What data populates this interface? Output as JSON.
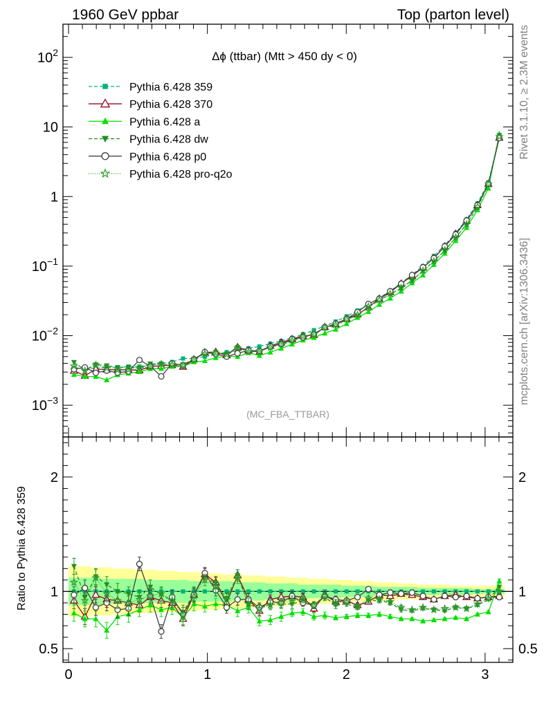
{
  "header": {
    "left": "1960 GeV ppbar",
    "right": "Top (parton level)"
  },
  "side": {
    "rivet": "Rivet 3.1.10, ≥ 2.3M events",
    "mcplots": "mcplots.cern.ch [arXiv:1306.3436]"
  },
  "colors": {
    "p359": "#00b37a",
    "p370": "#8b0a1f",
    "pa": "#00e000",
    "pdw": "#1f8f1f",
    "pp0": "#404040",
    "pq2o": "#2e9a2e",
    "band_yellow": "#ffff99",
    "band_green": "#99ff99"
  },
  "chart_data": [
    {
      "type": "line",
      "title": "Δϕ (ttbar) (Mtt > 450 dy < 0)",
      "watermark": "(MC_FBA_TTBAR)",
      "yscale": "log",
      "ylim": [
        0.00035,
        300
      ],
      "xlim": [
        -0.04,
        3.2
      ],
      "yticks": [
        {
          "v": 0.001,
          "base": "10",
          "exp": "−3"
        },
        {
          "v": 0.01,
          "base": "10",
          "exp": "−2"
        },
        {
          "v": 0.1,
          "base": "10",
          "exp": "−1"
        },
        {
          "v": 1,
          "base": "1",
          "exp": ""
        },
        {
          "v": 10,
          "base": "10",
          "exp": ""
        },
        {
          "v": 100,
          "base": "10",
          "exp": "2"
        }
      ],
      "legend": [
        {
          "key": "p359",
          "name": "Pythia 6.428 359"
        },
        {
          "key": "p370",
          "name": "Pythia 6.428 370"
        },
        {
          "key": "pa",
          "name": "Pythia 6.428 a"
        },
        {
          "key": "pdw",
          "name": "Pythia 6.428 dw"
        },
        {
          "key": "pp0",
          "name": "Pythia 6.428 p0"
        },
        {
          "key": "pq2o",
          "name": "Pythia 6.428 pro-q2o"
        }
      ],
      "x": [
        0.0393,
        0.1178,
        0.1963,
        0.2749,
        0.3534,
        0.432,
        0.5105,
        0.589,
        0.6676,
        0.7461,
        0.8247,
        0.9032,
        0.9817,
        1.0603,
        1.1388,
        1.2174,
        1.2959,
        1.3744,
        1.453,
        1.5315,
        1.6101,
        1.6886,
        1.7671,
        1.8457,
        1.9242,
        2.0028,
        2.0813,
        2.1598,
        2.2384,
        2.3169,
        2.3955,
        2.474,
        2.5525,
        2.6311,
        2.7096,
        2.7882,
        2.8667,
        2.9452,
        3.0238,
        3.1023
      ],
      "reference": [
        0.0034,
        0.0034,
        0.0034,
        0.0035,
        0.0035,
        0.0036,
        0.0036,
        0.0038,
        0.004,
        0.0042,
        0.0047,
        0.0047,
        0.005,
        0.0054,
        0.0058,
        0.006,
        0.0066,
        0.007,
        0.0077,
        0.0084,
        0.0093,
        0.0105,
        0.012,
        0.0137,
        0.016,
        0.019,
        0.023,
        0.028,
        0.035,
        0.044,
        0.057,
        0.075,
        0.1,
        0.14,
        0.2,
        0.3,
        0.47,
        0.8,
        1.6,
        7.3
      ],
      "ratio_ylim": [
        0.38,
        2.35
      ],
      "ratio_yticks": [
        0.5,
        1,
        2
      ],
      "ratio_ylabel": "Ratio to Pythia 6.428 359",
      "xticks": [
        0,
        1,
        2,
        3
      ],
      "band_outer": [
        0.22,
        0.22,
        0.21,
        0.21,
        0.2,
        0.2,
        0.19,
        0.19,
        0.18,
        0.18,
        0.17,
        0.17,
        0.16,
        0.16,
        0.15,
        0.15,
        0.14,
        0.14,
        0.13,
        0.13,
        0.12,
        0.12,
        0.11,
        0.11,
        0.1,
        0.1,
        0.09,
        0.09,
        0.08,
        0.08,
        0.07,
        0.07,
        0.06,
        0.06,
        0.06,
        0.05,
        0.05,
        0.05,
        0.05,
        0.05
      ],
      "band_inner": [
        0.12,
        0.12,
        0.12,
        0.11,
        0.11,
        0.11,
        0.11,
        0.1,
        0.1,
        0.1,
        0.1,
        0.09,
        0.09,
        0.09,
        0.09,
        0.08,
        0.08,
        0.08,
        0.07,
        0.07,
        0.07,
        0.06,
        0.06,
        0.06,
        0.06,
        0.05,
        0.05,
        0.05,
        0.04,
        0.04,
        0.04,
        0.04,
        0.03,
        0.03,
        0.03,
        0.03,
        0.03,
        0.02,
        0.02,
        0.02
      ],
      "series": [
        {
          "key": "p359",
          "marker": "square",
          "dash": "5,3",
          "ratio": [
            1.0,
            1.0,
            1.0,
            1.0,
            1.0,
            1.0,
            1.0,
            1.0,
            1.0,
            1.0,
            1.0,
            1.0,
            1.0,
            1.0,
            1.0,
            1.0,
            1.0,
            1.0,
            1.0,
            1.0,
            1.0,
            1.0,
            1.0,
            1.0,
            1.0,
            1.0,
            1.0,
            1.0,
            1.0,
            1.0,
            1.0,
            1.0,
            1.0,
            1.0,
            1.0,
            1.0,
            1.0,
            1.0,
            1.0,
            1.0
          ],
          "err": [
            0.1,
            0.1,
            0.1,
            0.1,
            0.1,
            0.09,
            0.09,
            0.09,
            0.09,
            0.08,
            0.08,
            0.08,
            0.07,
            0.07,
            0.06,
            0.06,
            0.06,
            0.05,
            0.05,
            0.05,
            0.04,
            0.04,
            0.04,
            0.03,
            0.03,
            0.03,
            0.02,
            0.02,
            0.02,
            0.02,
            0.02,
            0.02,
            0.02,
            0.02,
            0.01,
            0.01,
            0.01,
            0.01,
            0.01,
            0.01
          ]
        },
        {
          "key": "p370",
          "marker": "triangle-open",
          "dash": "",
          "ratio": [
            0.92,
            0.78,
            0.97,
            0.93,
            0.92,
            0.9,
            0.88,
            0.95,
            0.92,
            0.9,
            0.76,
            0.97,
            1.15,
            1.08,
            0.9,
            1.14,
            0.93,
            0.83,
            0.93,
            0.95,
            0.96,
            0.95,
            0.85,
            0.97,
            0.91,
            0.92,
            0.88,
            0.91,
            0.97,
            0.96,
            0.98,
            0.97,
            0.95,
            0.93,
            0.96,
            0.97,
            0.95,
            0.94,
            0.95,
            0.96
          ],
          "err": [
            0.07,
            0.07,
            0.07,
            0.07,
            0.07,
            0.06,
            0.06,
            0.06,
            0.06,
            0.06,
            0.06,
            0.06,
            0.05,
            0.05,
            0.05,
            0.05,
            0.05,
            0.04,
            0.04,
            0.04,
            0.04,
            0.03,
            0.03,
            0.03,
            0.03,
            0.02,
            0.02,
            0.02,
            0.02,
            0.02,
            0.02,
            0.01,
            0.01,
            0.01,
            0.01,
            0.01,
            0.01,
            0.01,
            0.01,
            0.01
          ]
        },
        {
          "key": "pa",
          "marker": "triangle-up",
          "dash": "",
          "ratio": [
            0.81,
            0.76,
            0.76,
            0.66,
            0.78,
            0.8,
            0.84,
            0.88,
            0.84,
            0.86,
            0.77,
            0.89,
            0.87,
            0.89,
            0.88,
            0.83,
            0.86,
            0.74,
            0.75,
            0.78,
            0.81,
            0.82,
            0.78,
            0.79,
            0.77,
            0.78,
            0.79,
            0.79,
            0.8,
            0.78,
            0.76,
            0.76,
            0.74,
            0.75,
            0.76,
            0.77,
            0.76,
            0.8,
            0.82,
            1.09
          ],
          "err": [
            0.07,
            0.07,
            0.07,
            0.07,
            0.07,
            0.07,
            0.06,
            0.06,
            0.06,
            0.06,
            0.06,
            0.06,
            0.05,
            0.05,
            0.05,
            0.05,
            0.05,
            0.04,
            0.04,
            0.04,
            0.03,
            0.03,
            0.03,
            0.03,
            0.02,
            0.02,
            0.02,
            0.02,
            0.02,
            0.02,
            0.01,
            0.01,
            0.01,
            0.01,
            0.01,
            0.01,
            0.01,
            0.01,
            0.01,
            0.02
          ]
        },
        {
          "key": "pdw",
          "marker": "triangle-down",
          "dash": "5,3",
          "ratio": [
            1.22,
            0.95,
            1.13,
            1.06,
            1.0,
            0.98,
            0.95,
            1.04,
            0.97,
            0.92,
            0.82,
            0.98,
            1.13,
            1.07,
            0.94,
            1.14,
            0.89,
            0.85,
            0.89,
            0.89,
            0.89,
            0.92,
            0.88,
            0.95,
            0.88,
            0.89,
            0.86,
            0.92,
            0.92,
            0.9,
            0.84,
            0.83,
            0.85,
            0.84,
            0.83,
            0.86,
            0.85,
            0.88,
            0.93,
            1.04
          ],
          "err": [
            0.07,
            0.07,
            0.07,
            0.07,
            0.07,
            0.06,
            0.06,
            0.06,
            0.06,
            0.06,
            0.06,
            0.06,
            0.05,
            0.05,
            0.05,
            0.05,
            0.05,
            0.04,
            0.04,
            0.04,
            0.04,
            0.03,
            0.03,
            0.03,
            0.03,
            0.02,
            0.02,
            0.02,
            0.02,
            0.02,
            0.02,
            0.01,
            0.01,
            0.01,
            0.01,
            0.01,
            0.01,
            0.01,
            0.01,
            0.01
          ]
        },
        {
          "key": "pp0",
          "marker": "circle-open",
          "dash": "",
          "ratio": [
            0.97,
            1.03,
            0.86,
            0.9,
            0.84,
            0.85,
            1.24,
            0.96,
            0.65,
            0.95,
            0.8,
            0.97,
            1.16,
            1.01,
            0.86,
            0.93,
            0.93,
            0.86,
            0.91,
            0.9,
            0.96,
            0.9,
            0.88,
            0.96,
            0.93,
            0.92,
            0.95,
            1.02,
            0.97,
            0.99,
            0.98,
            0.99,
            0.96,
            0.93,
            0.96,
            0.95,
            0.96,
            0.94,
            0.95,
            0.95
          ],
          "err": [
            0.07,
            0.07,
            0.07,
            0.07,
            0.07,
            0.06,
            0.06,
            0.06,
            0.06,
            0.06,
            0.06,
            0.06,
            0.05,
            0.05,
            0.05,
            0.05,
            0.05,
            0.04,
            0.04,
            0.04,
            0.04,
            0.03,
            0.03,
            0.03,
            0.03,
            0.02,
            0.02,
            0.02,
            0.02,
            0.02,
            0.02,
            0.01,
            0.01,
            0.01,
            0.01,
            0.01,
            0.01,
            0.01,
            0.01,
            0.01
          ]
        },
        {
          "key": "pq2o",
          "marker": "star",
          "dash": "1,2",
          "ratio": [
            1.08,
            0.92,
            1.12,
            0.98,
            0.92,
            0.9,
            0.93,
            0.96,
            0.98,
            0.92,
            0.8,
            0.96,
            1.1,
            1.04,
            0.93,
            1.12,
            0.89,
            0.85,
            0.88,
            0.9,
            0.92,
            0.93,
            0.88,
            0.96,
            0.9,
            0.91,
            0.87,
            0.94,
            0.93,
            0.91,
            0.86,
            0.84,
            0.86,
            0.84,
            0.85,
            0.86,
            0.85,
            0.89,
            0.94,
            1.0
          ],
          "err": [
            0.07,
            0.07,
            0.07,
            0.07,
            0.07,
            0.06,
            0.06,
            0.06,
            0.06,
            0.06,
            0.06,
            0.06,
            0.05,
            0.05,
            0.05,
            0.05,
            0.05,
            0.04,
            0.04,
            0.04,
            0.04,
            0.03,
            0.03,
            0.03,
            0.03,
            0.02,
            0.02,
            0.02,
            0.02,
            0.02,
            0.02,
            0.01,
            0.01,
            0.01,
            0.01,
            0.01,
            0.01,
            0.01,
            0.01,
            0.01
          ]
        }
      ]
    }
  ]
}
